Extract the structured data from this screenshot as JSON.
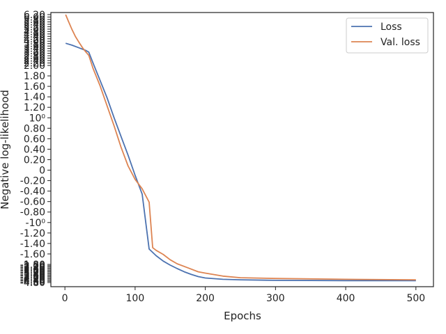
{
  "chart_data": {
    "type": "line",
    "xlabel": "Epochs",
    "ylabel": "Negative log-likelihood",
    "xlim": [
      -20,
      525
    ],
    "xticks": [
      "0",
      "100",
      "200",
      "300",
      "400",
      "500"
    ],
    "ylim": [
      0,
      1
    ],
    "yscale": "symlog",
    "yticks": [
      "-4.80",
      "-4.60",
      "-4.40",
      "-4.20",
      "-4.00",
      "-3.80",
      "-3.60",
      "-3.40",
      "-3.20",
      "-3.00",
      "-2.80",
      "-2.60",
      "-2.40",
      "-2.20",
      "-2.00",
      "-1.80",
      "-1.60",
      "-1.40",
      "-1.20",
      "-10⁰",
      "-0.80",
      "-0.60",
      "-0.40",
      "-0.20",
      "0",
      "0.20",
      "0.40",
      "0.60",
      "0.80",
      "10⁰",
      "1.20",
      "1.40",
      "1.60",
      "1.80",
      "2.00",
      "2.20",
      "2.40",
      "2.60",
      "2.80",
      "3.00",
      "3.20",
      "3.40",
      "3.60",
      "3.80",
      "4.00",
      "4.20",
      "4.40",
      "4.60",
      "4.80",
      "5.00",
      "5.20",
      "5.40",
      "5.60",
      "5.80",
      "6.00",
      "6.20"
    ],
    "legend_position": "top-right",
    "grid": false,
    "series": [
      {
        "name": "Loss",
        "color": "#4c72b0",
        "x": [
          1,
          10,
          20,
          30,
          34,
          40,
          50,
          60,
          70,
          80,
          90,
          100,
          110,
          120,
          130,
          140,
          150,
          160,
          170,
          180,
          190,
          200,
          225,
          250,
          300,
          400,
          500
        ],
        "y": [
          0.893,
          0.886,
          0.876,
          0.866,
          0.86,
          0.82,
          0.755,
          0.69,
          0.615,
          0.545,
          0.475,
          0.4,
          0.33,
          0.125,
          0.1,
          0.08,
          0.065,
          0.052,
          0.04,
          0.03,
          0.022,
          0.017,
          0.012,
          0.01,
          0.008,
          0.007,
          0.007
        ]
      },
      {
        "name": "Val. loss",
        "color": "#dd8452",
        "x": [
          1,
          5,
          10,
          15,
          20,
          25,
          30,
          34,
          40,
          50,
          60,
          70,
          80,
          90,
          100,
          110,
          120,
          125,
          130,
          140,
          150,
          160,
          175,
          190,
          200,
          225,
          250,
          300,
          400,
          500
        ],
        "y": [
          1.0,
          0.975,
          0.945,
          0.918,
          0.897,
          0.877,
          0.86,
          0.848,
          0.8,
          0.735,
          0.66,
          0.585,
          0.505,
          0.435,
          0.385,
          0.35,
          0.3,
          0.13,
          0.12,
          0.105,
          0.085,
          0.07,
          0.055,
          0.04,
          0.035,
          0.024,
          0.018,
          0.015,
          0.012,
          0.01
        ]
      }
    ]
  }
}
